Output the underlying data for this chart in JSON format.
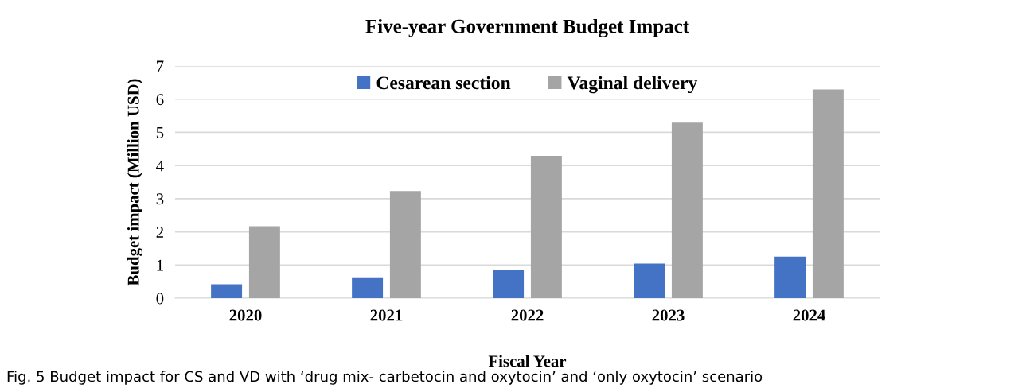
{
  "chart_data": {
    "type": "bar",
    "title": "Five-year Government Budget Impact",
    "xlabel": "Fiscal Year",
    "ylabel": "Budget impact (Million USD)",
    "categories": [
      "2020",
      "2021",
      "2022",
      "2023",
      "2024"
    ],
    "series": [
      {
        "name": "Cesarean section",
        "color": "#4472c4",
        "values": [
          0.42,
          0.63,
          0.84,
          1.04,
          1.25
        ]
      },
      {
        "name": "Vaginal delivery",
        "color": "#a5a5a5",
        "values": [
          2.17,
          3.23,
          4.29,
          5.29,
          6.29
        ]
      }
    ],
    "ylim": [
      0,
      7
    ],
    "yticks": [
      0,
      1,
      2,
      3,
      4,
      5,
      6,
      7
    ],
    "grid": "y",
    "legend": "top",
    "annotations": [
      "Fig. 5 Budget impact for CS and VD with ‘drug mix- carbetocin and oxytocin’ and ‘only oxytocin’ scenario"
    ]
  }
}
